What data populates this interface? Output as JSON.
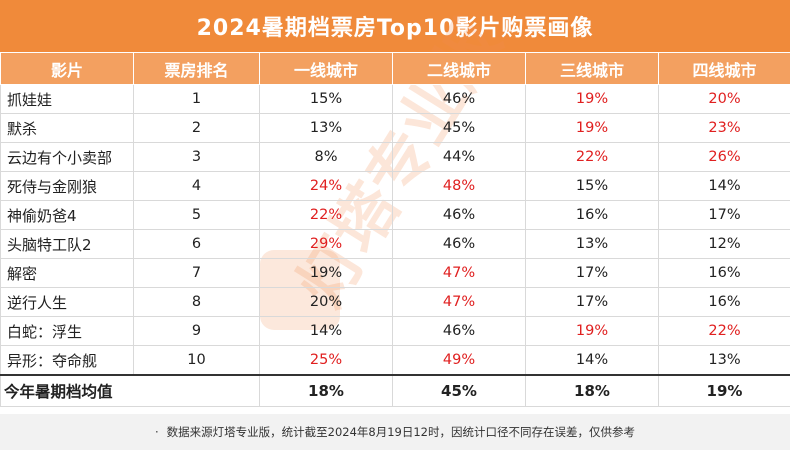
{
  "title": "2024暑期档票房Top10影片购票画像",
  "headers": [
    "影片",
    "票房排名",
    "一线城市",
    "二线城市",
    "三线城市",
    "四线城市"
  ],
  "rows": [
    {
      "film": "抓娃娃",
      "rank": "1",
      "t1": "15%",
      "t2": "46%",
      "t3": "19%",
      "t4": "20%",
      "red": [
        false,
        false,
        true,
        true
      ]
    },
    {
      "film": "默杀",
      "rank": "2",
      "t1": "13%",
      "t2": "45%",
      "t3": "19%",
      "t4": "23%",
      "red": [
        false,
        false,
        true,
        true
      ]
    },
    {
      "film": "云边有个小卖部",
      "rank": "3",
      "t1": "8%",
      "t2": "44%",
      "t3": "22%",
      "t4": "26%",
      "red": [
        false,
        false,
        true,
        true
      ]
    },
    {
      "film": "死侍与金刚狼",
      "rank": "4",
      "t1": "24%",
      "t2": "48%",
      "t3": "15%",
      "t4": "14%",
      "red": [
        true,
        true,
        false,
        false
      ]
    },
    {
      "film": "神偷奶爸4",
      "rank": "5",
      "t1": "22%",
      "t2": "46%",
      "t3": "16%",
      "t4": "17%",
      "red": [
        true,
        false,
        false,
        false
      ]
    },
    {
      "film": "头脑特工队2",
      "rank": "6",
      "t1": "29%",
      "t2": "46%",
      "t3": "13%",
      "t4": "12%",
      "red": [
        true,
        false,
        false,
        false
      ]
    },
    {
      "film": "解密",
      "rank": "7",
      "t1": "19%",
      "t2": "47%",
      "t3": "17%",
      "t4": "16%",
      "red": [
        false,
        true,
        false,
        false
      ]
    },
    {
      "film": "逆行人生",
      "rank": "8",
      "t1": "20%",
      "t2": "47%",
      "t3": "17%",
      "t4": "16%",
      "red": [
        false,
        true,
        false,
        false
      ]
    },
    {
      "film": "白蛇：浮生",
      "rank": "9",
      "t1": "14%",
      "t2": "46%",
      "t3": "19%",
      "t4": "22%",
      "red": [
        false,
        false,
        true,
        true
      ]
    },
    {
      "film": "异形：夺命舰",
      "rank": "10",
      "t1": "25%",
      "t2": "49%",
      "t3": "14%",
      "t4": "13%",
      "red": [
        true,
        true,
        false,
        false
      ]
    }
  ],
  "average": {
    "label": "今年暑期档均值",
    "t1": "18%",
    "t2": "45%",
    "t3": "18%",
    "t4": "19%"
  },
  "footer": "数据来源灯塔专业版，统计截至2024年8月19日12时，因统计口径不同存在误差，仅供参考",
  "footer_bullet": "·",
  "watermark_text": "灯塔专业版",
  "colors": {
    "header_orange": "#f08a3a",
    "subheader_orange": "#f3a060",
    "highlight_red": "#e02020"
  }
}
